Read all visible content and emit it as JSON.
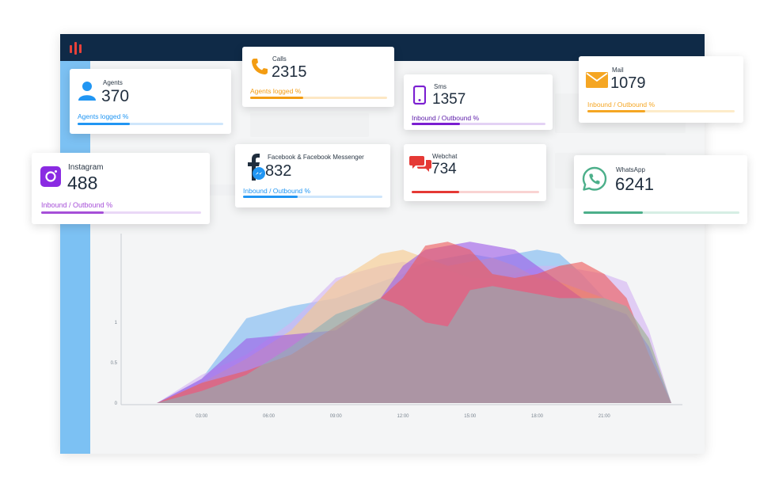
{
  "app": {
    "accent": "#e8413a",
    "topbar_color": "#0f2a47",
    "sidebar_color": "#7cc1f3"
  },
  "cards": {
    "agents": {
      "title": "Agents",
      "value": "370",
      "subtitle": "Agents logged %",
      "progress": 0.36,
      "color": "#2196f3",
      "icon": "user-icon"
    },
    "calls": {
      "title": "Calls",
      "value": "2315",
      "subtitle": "Agents logged %",
      "progress": 0.39,
      "color": "#f39c12",
      "icon": "phone-icon"
    },
    "sms": {
      "title": "Sms",
      "value": "1357",
      "subtitle": "Inbound / Outbound %",
      "progress": 0.36,
      "color": "#7b1fd1",
      "icon": "mobile-icon"
    },
    "mail": {
      "title": "Mail",
      "value": "1079",
      "subtitle": "Inbound / Outbound %",
      "progress": 0.39,
      "color": "#f5a623",
      "icon": "envelope-icon"
    },
    "instagram": {
      "title": "Instagram",
      "value": "488",
      "subtitle": "Inbound / Outbound %",
      "progress": 0.39,
      "color": "#a64fd8",
      "icon": "instagram-icon"
    },
    "facebook": {
      "title": "Facebook & Facebook Messenger",
      "value": "832",
      "subtitle": "Inbound / Outbound %",
      "progress": 0.39,
      "color": "#2196f3",
      "icon": "facebook-messenger-icon"
    },
    "webchat": {
      "title": "Webchat",
      "value": "734",
      "subtitle": "",
      "progress": 0.37,
      "color": "#e53935",
      "icon": "chat-bubbles-icon"
    },
    "whatsapp": {
      "title": "WhatsApp",
      "value": "6241",
      "subtitle": "",
      "progress": 0.38,
      "color": "#4caf8a",
      "icon": "whatsapp-icon"
    }
  },
  "chart_data": {
    "type": "area",
    "x": [
      1,
      3,
      5,
      7,
      9,
      11,
      12,
      13,
      14,
      15,
      16,
      17,
      18,
      19,
      20,
      21,
      22,
      23,
      24
    ],
    "x_tick_labels": [
      "03:00",
      "06:00",
      "09:00",
      "12:00",
      "15:00",
      "18:00",
      "21:00"
    ],
    "x_tick_values": [
      3,
      6,
      9,
      12,
      15,
      18,
      21
    ],
    "xlim": [
      0,
      24
    ],
    "y_tick_labels": [
      "0",
      "0.5",
      "1"
    ],
    "y_tick_values": [
      0,
      0.5,
      1
    ],
    "ylim": [
      0,
      2.1
    ],
    "grid": false,
    "series": [
      {
        "color": "#7ab8f0",
        "values": [
          0,
          0.3,
          1.05,
          1.2,
          1.3,
          1.5,
          1.6,
          1.75,
          1.8,
          1.85,
          1.8,
          1.85,
          1.9,
          1.85,
          1.6,
          1.3,
          0.9,
          0.5,
          0
        ]
      },
      {
        "color": "#d4b3f2",
        "values": [
          0,
          0.35,
          0.6,
          1.0,
          1.55,
          1.7,
          1.75,
          1.7,
          1.65,
          1.55,
          1.55,
          1.6,
          1.7,
          1.7,
          1.65,
          1.6,
          1.5,
          0.9,
          0
        ]
      },
      {
        "color": "#f7c98a",
        "values": [
          0,
          0.25,
          0.55,
          0.9,
          1.5,
          1.85,
          1.9,
          1.8,
          1.7,
          1.75,
          1.8,
          1.7,
          1.55,
          1.5,
          1.4,
          1.3,
          1.2,
          0.8,
          0
        ]
      },
      {
        "color": "#9c5ce6",
        "values": [
          0,
          0.3,
          0.8,
          0.85,
          0.9,
          1.3,
          1.7,
          1.9,
          1.95,
          2.0,
          1.95,
          1.9,
          1.7,
          1.5,
          1.3,
          1.2,
          1.1,
          0.7,
          0
        ]
      },
      {
        "color": "#ee5a5a",
        "values": [
          0,
          0.25,
          0.4,
          0.6,
          0.95,
          1.3,
          1.55,
          1.95,
          2.0,
          1.9,
          1.6,
          1.55,
          1.6,
          1.7,
          1.75,
          1.6,
          1.3,
          0.6,
          0
        ]
      },
      {
        "color": "#8fb0b5",
        "values": [
          0,
          0.15,
          0.35,
          0.7,
          1.1,
          1.3,
          1.2,
          1.0,
          0.95,
          1.4,
          1.45,
          1.4,
          1.35,
          1.3,
          1.3,
          1.3,
          1.2,
          0.8,
          0
        ]
      }
    ]
  }
}
